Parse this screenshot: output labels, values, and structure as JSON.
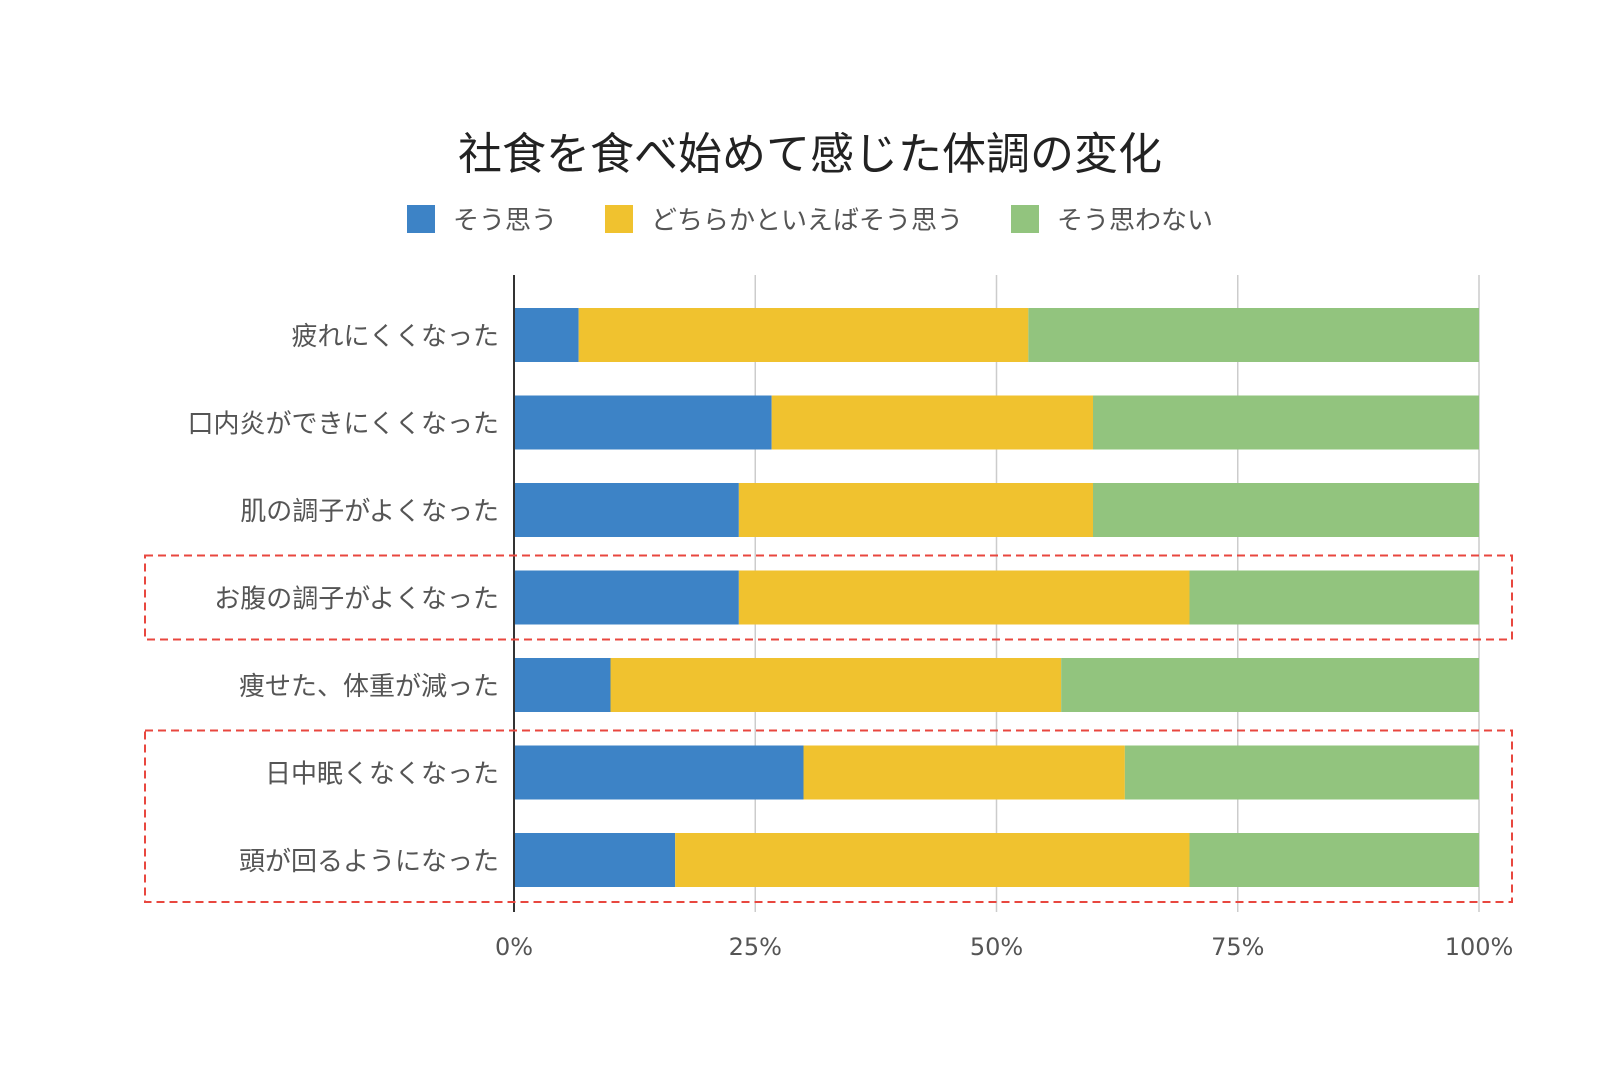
{
  "chart_data": {
    "type": "bar",
    "orientation": "horizontal",
    "stacked": true,
    "percent": true,
    "title": "社食を食べ始めて感じた体調の変化",
    "categories": [
      "疲れにくくなった",
      "口内炎ができにくくなった",
      "肌の調子がよくなった",
      "お腹の調子がよくなった",
      "痩せた、体重が減った",
      "日中眠くなくなった",
      "頭が回るようになった"
    ],
    "series": [
      {
        "name": "そう思う",
        "color": "#3d83c6",
        "values": [
          6.7,
          26.7,
          23.3,
          23.3,
          10.0,
          30.0,
          16.7
        ]
      },
      {
        "name": "どちらかといえばそう思う",
        "color": "#f0c22f",
        "values": [
          46.6,
          33.3,
          36.7,
          46.7,
          46.7,
          33.3,
          53.3
        ]
      },
      {
        "name": "そう思わない",
        "color": "#92c47e",
        "values": [
          46.7,
          40.0,
          40.0,
          30.0,
          43.3,
          36.7,
          30.0
        ]
      }
    ],
    "xlim": [
      0,
      100
    ],
    "xticks": [
      0,
      25,
      50,
      75,
      100
    ],
    "xtick_labels": [
      "0%",
      "25%",
      "50%",
      "75%",
      "100%"
    ],
    "grid": true,
    "legend_position": "top",
    "highlight_color": "#e8473f",
    "highlight_groups": [
      [
        "お腹の調子がよくなった"
      ],
      [
        "日中眠くなくなった",
        "頭が回るようになった"
      ]
    ]
  }
}
